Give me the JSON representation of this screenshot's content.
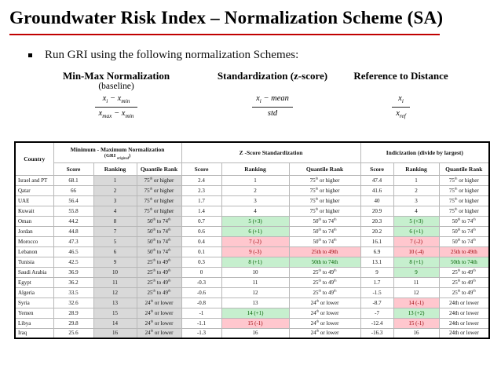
{
  "slide": {
    "title": "Groundwater Risk Index – Normalization Scheme (SA)",
    "bullet": "Run GRI using the following normalization Schemes:"
  },
  "colors": {
    "accent": "#c00000",
    "grey": "#d9d9d9",
    "green_bg": "#c6efce",
    "green_text": "#006100",
    "red_bg": "#ffc7ce",
    "red_text": "#9c0006"
  },
  "schemes": [
    {
      "title": "Min-Max Normalization",
      "subtitle": "(baseline)",
      "num": [
        "x",
        "i",
        " − ",
        "x",
        "min"
      ],
      "den": [
        "x",
        "max",
        " − ",
        "x",
        "min"
      ]
    },
    {
      "title": "Standardization (z-score)",
      "subtitle": "",
      "num": [
        "x",
        "i",
        " − mean"
      ],
      "den": [
        "std"
      ]
    },
    {
      "title": "Reference to Distance",
      "subtitle": "",
      "num": [
        "x",
        "i"
      ],
      "den": [
        "x",
        "ref"
      ]
    }
  ],
  "table": {
    "country_header": "Country",
    "groups": [
      {
        "title": "Minimum - Maximum Normalization",
        "note": [
          "(GRI ",
          "original",
          ")"
        ]
      },
      {
        "title": "Z -Score Standardization",
        "note": [
          "",
          "",
          ""
        ]
      },
      {
        "title": "Indicization (divide by largest)",
        "note": [
          "",
          "",
          ""
        ]
      }
    ],
    "subheaders": [
      "Score",
      "Ranking",
      "Quantile Rank"
    ],
    "rows": [
      {
        "c": [
          "Israel and PT",
          "68.1",
          "1",
          "75th or higher",
          "2.4",
          "1",
          "75th or higher",
          "47.4",
          "1",
          "75th or higher"
        ],
        "m": [
          "",
          "",
          "",
          "",
          "",
          "",
          "",
          "",
          "",
          ""
        ]
      },
      {
        "c": [
          "Qatar",
          "66",
          "2",
          "75th or higher",
          "2.3",
          "2",
          "75th or higher",
          "41.6",
          "2",
          "75th or higher"
        ],
        "m": [
          "",
          "",
          "",
          "",
          "",
          "",
          "",
          "",
          "",
          ""
        ]
      },
      {
        "c": [
          "UAE",
          "56.4",
          "3",
          "75th or higher",
          "1.7",
          "3",
          "75th or higher",
          "40",
          "3",
          "75th or higher"
        ],
        "m": [
          "",
          "",
          "",
          "",
          "",
          "",
          "",
          "",
          "",
          ""
        ]
      },
      {
        "c": [
          "Kuwait",
          "55.8",
          "4",
          "75th or higher",
          "1.4",
          "4",
          "75th or higher",
          "20.9",
          "4",
          "75th or higher"
        ],
        "m": [
          "",
          "",
          "",
          "",
          "",
          "",
          "",
          "",
          "",
          ""
        ]
      },
      {
        "c": [
          "Oman",
          "44.2",
          "8",
          "50th to 74th",
          "0.7",
          "5 (+3)",
          "50th to 74th",
          "20.3",
          "5 (+3)",
          "50th to 74th"
        ],
        "m": [
          "",
          "",
          "",
          "",
          "",
          "g",
          "",
          "",
          "g",
          ""
        ]
      },
      {
        "c": [
          "Jordan",
          "44.8",
          "7",
          "50th to 74th",
          "0.6",
          "6 (+1)",
          "50th to 74th",
          "20.2",
          "6 (+1)",
          "50th to 74th"
        ],
        "m": [
          "",
          "",
          "",
          "",
          "",
          "g",
          "",
          "",
          "g",
          ""
        ]
      },
      {
        "c": [
          "Morocco",
          "47.3",
          "5",
          "50th to 74th",
          "0.4",
          "7 (-2)",
          "50th to 74th",
          "16.1",
          "7 (-2)",
          "50th to 74th"
        ],
        "m": [
          "",
          "",
          "",
          "",
          "",
          "r",
          "",
          "",
          "r",
          ""
        ]
      },
      {
        "c": [
          "Lebanon",
          "46.5",
          "6",
          "50th to 74th",
          "0.1",
          "9 (-3)",
          "25th to 49th",
          "6.9",
          "10 (-4)",
          "25th to 49th"
        ],
        "m": [
          "",
          "",
          "",
          "",
          "",
          "r",
          "r",
          "",
          "r",
          "r"
        ]
      },
      {
        "c": [
          "Tunisia",
          "42.5",
          "9",
          "25th to 49th",
          "0.3",
          "8 (+1)",
          "50th to 74th",
          "13.1",
          "8 (+1)",
          "50th to 74th"
        ],
        "m": [
          "",
          "",
          "",
          "",
          "",
          "g",
          "g",
          "",
          "g",
          "g"
        ]
      },
      {
        "c": [
          "Saudi Arabia",
          "36.9",
          "10",
          "25th to 49th",
          "0",
          "10",
          "25th to 49th",
          "9",
          "9",
          "25th to 49th"
        ],
        "m": [
          "",
          "",
          "",
          "",
          "",
          "",
          "",
          "",
          "g",
          ""
        ]
      },
      {
        "c": [
          "Egypt",
          "36.2",
          "11",
          "25th to 49th",
          "-0.3",
          "11",
          "25th to 49th",
          "1.7",
          "11",
          "25th to 49th"
        ],
        "m": [
          "",
          "",
          "",
          "",
          "",
          "",
          "",
          "",
          "",
          ""
        ]
      },
      {
        "c": [
          "Algeria",
          "33.5",
          "12",
          "25th to 49th",
          "-0.6",
          "12",
          "25th to 49th",
          "-1.5",
          "12",
          "25th to 49th"
        ],
        "m": [
          "",
          "",
          "",
          "",
          "",
          "",
          "",
          "",
          "",
          ""
        ]
      },
      {
        "c": [
          "Syria",
          "32.6",
          "13",
          "24th or lower",
          "-0.8",
          "13",
          "24th or lower",
          "-8.7",
          "14 (-1)",
          "24th or lower"
        ],
        "m": [
          "",
          "",
          "",
          "",
          "",
          "",
          "",
          "",
          "r",
          "p"
        ]
      },
      {
        "c": [
          "Yemen",
          "28.9",
          "15",
          "24th or lower",
          "-1",
          "14 (+1)",
          "24th or lower",
          "-7",
          "13 (+2)",
          "24th or lower"
        ],
        "m": [
          "",
          "",
          "",
          "",
          "",
          "g",
          "",
          "",
          "g",
          "p"
        ]
      },
      {
        "c": [
          "Libya",
          "29.8",
          "14",
          "24th or lower",
          "-1.1",
          "15 (-1)",
          "24th or lower",
          "-12.4",
          "15 (-1)",
          "24th or lower"
        ],
        "m": [
          "",
          "",
          "",
          "",
          "",
          "r",
          "",
          "",
          "r",
          "p"
        ]
      },
      {
        "c": [
          "Iraq",
          "25.6",
          "16",
          "24th or lower",
          "-1.3",
          "16",
          "24th or lower",
          "-16.3",
          "16",
          "24th or lower"
        ],
        "m": [
          "",
          "",
          "",
          "",
          "",
          "",
          "",
          "",
          "",
          "p"
        ]
      }
    ]
  }
}
